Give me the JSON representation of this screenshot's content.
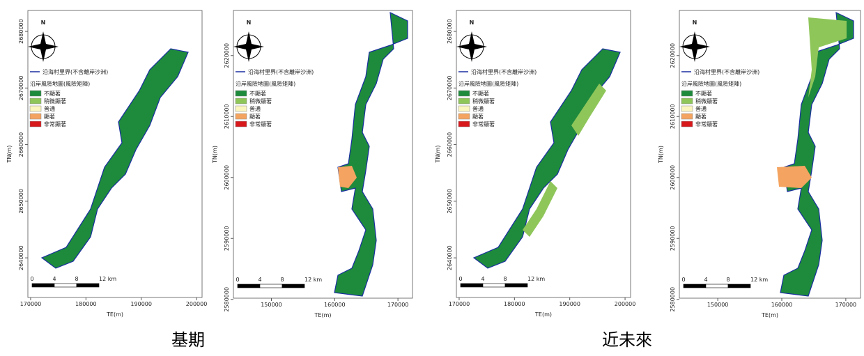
{
  "panels": [
    {
      "xlim": [
        169500,
        201000
      ],
      "ylim": [
        2633000,
        2683700
      ],
      "xticks": [
        170000,
        180000,
        190000,
        200000
      ],
      "yticks": [
        2640000,
        2650000,
        2660000,
        2670000,
        2680000
      ],
      "x_label": "TE(m)",
      "y_label": "TN(m)",
      "scale_bar": [
        "0",
        "4",
        "8",
        "12 km"
      ]
    },
    {
      "xlim": [
        144000,
        172300
      ],
      "ylim": [
        2580200,
        2627400
      ],
      "xticks": [
        150000,
        160000,
        170000
      ],
      "yticks": [
        2580000,
        2590000,
        2600000,
        2610000,
        2620000
      ],
      "x_label": "TE(m)",
      "y_label": "TN(m)",
      "scale_bar": [
        "0",
        "4",
        "8",
        "12 km"
      ]
    },
    {
      "xlim": [
        169500,
        201000
      ],
      "ylim": [
        2633000,
        2683700
      ],
      "xticks": [
        170000,
        180000,
        190000,
        200000
      ],
      "yticks": [
        2640000,
        2650000,
        2660000,
        2670000,
        2680000
      ],
      "x_label": "TE(m)",
      "y_label": "TN(m)",
      "scale_bar": [
        "0",
        "4",
        "8",
        "12 km"
      ]
    },
    {
      "xlim": [
        144000,
        172300
      ],
      "ylim": [
        2580200,
        2627400
      ],
      "xticks": [
        150000,
        160000,
        170000
      ],
      "yticks": [
        2580000,
        2590000,
        2600000,
        2610000,
        2620000
      ],
      "x_label": "TE(m)",
      "y_label": "TN(m)",
      "scale_bar": [
        "0",
        "4",
        "8",
        "12 km"
      ]
    }
  ],
  "north": "N",
  "legend": {
    "boundary": "沿海村里界(不含離岸沙洲)",
    "title": "沿岸風險地圖(風險矩陣)",
    "items": [
      {
        "name": "不顯著",
        "color": "#1e8a3c"
      },
      {
        "name": "稍微顯著",
        "color": "#8fc65a"
      },
      {
        "name": "普通",
        "color": "#fbf6c0"
      },
      {
        "name": "顯著",
        "color": "#f4a460"
      },
      {
        "name": "非常顯著",
        "color": "#d7191c"
      }
    ]
  },
  "captions": [
    "基期",
    "近未來"
  ]
}
